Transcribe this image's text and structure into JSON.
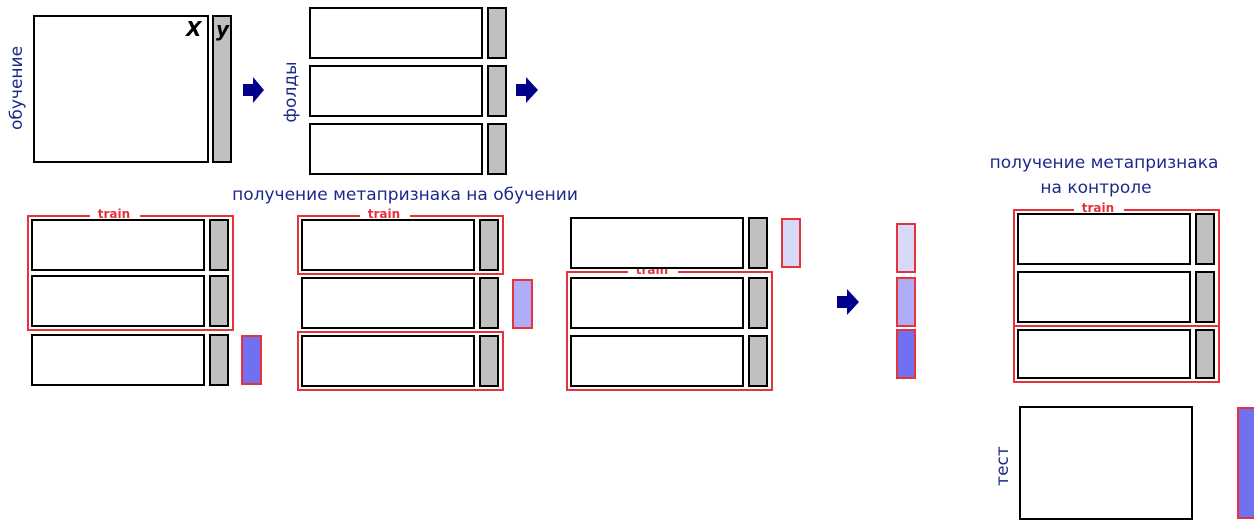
{
  "labels": {
    "training": "обучение",
    "folds": "фолды",
    "x": "X",
    "y": "y",
    "meta_on_training": "получение метапризнака на обучении",
    "meta_on_control_line1": "получение метапризнака",
    "meta_on_control_line2": "на контроле",
    "train": "train",
    "test": "тест"
  },
  "colors": {
    "caption": "#1a2a8c",
    "train_border": "#e8323a",
    "target_fill": "#c0c0c0",
    "arrow": "#00008b",
    "meta_fold_1": "#d8d8f8",
    "meta_fold_2": "#aeaef8",
    "meta_fold_3": "#7070f0"
  },
  "scheme": {
    "fold_count": 3,
    "iterations": [
      {
        "held_out_fold": 3,
        "train_folds": [
          1,
          2
        ]
      },
      {
        "held_out_fold": 2,
        "train_folds": [
          1,
          3
        ]
      },
      {
        "held_out_fold": 1,
        "train_folds": [
          2,
          3
        ]
      }
    ],
    "control": {
      "train_folds": [
        1,
        2,
        3
      ]
    }
  }
}
